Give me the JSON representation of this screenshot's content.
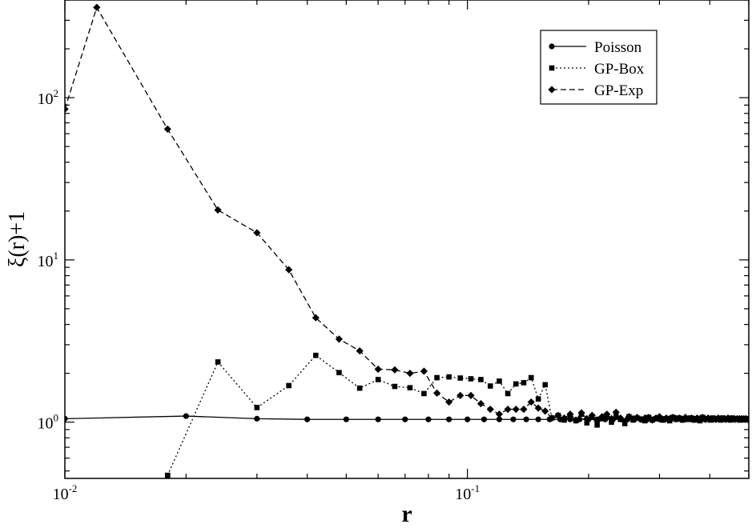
{
  "chart_data": {
    "type": "line",
    "xlabel": "r",
    "ylabel": "ξ(r)+1",
    "xscale": "log",
    "yscale": "log",
    "xlim": [
      0.01,
      0.5
    ],
    "ylim": [
      0.45,
      400
    ],
    "x_ticks": [
      {
        "base": "10",
        "exp": "-2",
        "value": 0.01
      },
      {
        "base": "10",
        "exp": "-1",
        "value": 0.1
      }
    ],
    "y_ticks": [
      {
        "base": "10",
        "exp": "0",
        "value": 1
      },
      {
        "base": "10",
        "exp": "1",
        "value": 10
      },
      {
        "base": "10",
        "exp": "2",
        "value": 100
      }
    ],
    "grid": false,
    "legend": {
      "placement": "top-right",
      "entries": [
        "Poisson",
        "GP-Box",
        "GP-Exp"
      ]
    },
    "series": [
      {
        "name": "Poisson",
        "line": "solid",
        "marker": "circle",
        "x": [
          0.01,
          0.02,
          0.03,
          0.04,
          0.05,
          0.06,
          0.07,
          0.08,
          0.09,
          0.1,
          0.11,
          0.12,
          0.13,
          0.14,
          0.15,
          0.16,
          0.17,
          0.18,
          0.19,
          0.2,
          0.21,
          0.22,
          0.23,
          0.24,
          0.25,
          0.26,
          0.27,
          0.28,
          0.29,
          0.3,
          0.31,
          0.32,
          0.33,
          0.34,
          0.35,
          0.36,
          0.37,
          0.38,
          0.39,
          0.4,
          0.41,
          0.42,
          0.43,
          0.44,
          0.45,
          0.46,
          0.47,
          0.48,
          0.49,
          0.5
        ],
        "y": [
          1.05,
          1.09,
          1.05,
          1.04,
          1.04,
          1.04,
          1.04,
          1.04,
          1.04,
          1.04,
          1.04,
          1.04,
          1.04,
          1.04,
          1.04,
          1.04,
          1.04,
          1.04,
          1.04,
          1.04,
          1.04,
          1.04,
          1.04,
          1.04,
          1.04,
          1.04,
          1.04,
          1.04,
          1.04,
          1.04,
          1.04,
          1.04,
          1.04,
          1.04,
          1.04,
          1.04,
          1.04,
          1.04,
          1.04,
          1.04,
          1.04,
          1.04,
          1.04,
          1.04,
          1.04,
          1.04,
          1.04,
          1.04,
          1.04,
          1.04
        ]
      },
      {
        "name": "GP-Box",
        "line": "dotted",
        "marker": "square",
        "x": [
          0.018,
          0.024,
          0.03,
          0.036,
          0.042,
          0.048,
          0.054,
          0.06,
          0.066,
          0.072,
          0.078,
          0.084,
          0.09,
          0.096,
          0.102,
          0.108,
          0.114,
          0.12,
          0.126,
          0.132,
          0.138,
          0.144,
          0.15,
          0.156,
          0.162,
          0.168,
          0.174,
          0.18,
          0.186,
          0.192,
          0.198,
          0.204,
          0.21,
          0.216,
          0.222,
          0.228,
          0.234,
          0.24,
          0.246,
          0.252,
          0.258,
          0.264,
          0.27,
          0.276,
          0.282,
          0.288,
          0.294,
          0.3,
          0.306,
          0.312,
          0.318,
          0.324,
          0.33,
          0.336,
          0.342,
          0.348,
          0.354,
          0.36,
          0.366,
          0.372,
          0.378,
          0.384,
          0.39,
          0.396,
          0.402,
          0.408,
          0.414,
          0.42,
          0.426,
          0.432,
          0.438,
          0.444,
          0.45,
          0.456,
          0.462,
          0.468,
          0.474,
          0.48,
          0.486,
          0.492,
          0.498
        ],
        "y": [
          0.47,
          2.35,
          1.23,
          1.68,
          2.58,
          2.02,
          1.62,
          1.83,
          1.66,
          1.63,
          1.5,
          1.88,
          1.9,
          1.87,
          1.85,
          1.83,
          1.67,
          1.79,
          1.5,
          1.72,
          1.75,
          1.88,
          1.39,
          1.7,
          1.06,
          1.1,
          1.03,
          1.08,
          1.02,
          1.12,
          0.99,
          1.07,
          0.96,
          1.05,
          1.1,
          1.0,
          1.08,
          1.04,
          0.98,
          1.08,
          1.03,
          1.06,
          1.04,
          1.02,
          1.07,
          1.03,
          1.05,
          1.06,
          1.03,
          1.05,
          1.02,
          1.07,
          1.04,
          1.06,
          1.03,
          1.05,
          1.04,
          1.06,
          1.03,
          1.05,
          1.02,
          1.07,
          1.04,
          1.05,
          1.03,
          1.06,
          1.04,
          1.05,
          1.03,
          1.06,
          1.04,
          1.05,
          1.03,
          1.06,
          1.04,
          1.05,
          1.03,
          1.05,
          1.04,
          1.05,
          1.04
        ]
      },
      {
        "name": "GP-Exp",
        "line": "dashed",
        "marker": "diamond",
        "x": [
          0.01,
          0.012,
          0.018,
          0.024,
          0.03,
          0.036,
          0.042,
          0.048,
          0.054,
          0.06,
          0.066,
          0.072,
          0.078,
          0.084,
          0.09,
          0.096,
          0.102,
          0.108,
          0.114,
          0.12,
          0.126,
          0.132,
          0.138,
          0.144,
          0.15,
          0.156,
          0.162,
          0.168,
          0.174,
          0.18,
          0.186,
          0.192,
          0.198,
          0.204,
          0.21,
          0.216,
          0.222,
          0.228,
          0.234,
          0.24,
          0.246,
          0.252,
          0.258,
          0.264,
          0.27,
          0.276,
          0.282,
          0.288,
          0.294,
          0.3,
          0.306,
          0.312,
          0.318,
          0.324,
          0.33,
          0.336,
          0.342,
          0.348,
          0.354,
          0.36,
          0.366,
          0.372,
          0.378,
          0.384,
          0.39,
          0.396,
          0.402,
          0.408,
          0.414,
          0.42,
          0.426,
          0.432,
          0.438,
          0.444,
          0.45,
          0.456,
          0.462,
          0.468,
          0.474,
          0.48,
          0.486,
          0.492,
          0.498
        ],
        "y": [
          85,
          360,
          64,
          20.3,
          14.7,
          8.7,
          4.4,
          3.25,
          2.75,
          2.12,
          2.1,
          2.0,
          2.06,
          1.51,
          1.33,
          1.46,
          1.46,
          1.3,
          1.2,
          1.12,
          1.2,
          1.2,
          1.2,
          1.33,
          1.22,
          1.17,
          1.06,
          1.1,
          1.06,
          1.12,
          1.03,
          1.14,
          1.05,
          1.1,
          1.02,
          1.08,
          1.12,
          1.05,
          1.15,
          1.06,
          1.01,
          1.08,
          1.05,
          1.07,
          1.04,
          1.06,
          1.07,
          1.03,
          1.06,
          1.08,
          1.04,
          1.06,
          1.05,
          1.07,
          1.05,
          1.06,
          1.04,
          1.07,
          1.05,
          1.06,
          1.04,
          1.06,
          1.05,
          1.07,
          1.04,
          1.06,
          1.05,
          1.05,
          1.04,
          1.06,
          1.05,
          1.05,
          1.04,
          1.06,
          1.05,
          1.05,
          1.04,
          1.05,
          1.05,
          1.05,
          1.05,
          1.05,
          1.04
        ]
      }
    ]
  }
}
